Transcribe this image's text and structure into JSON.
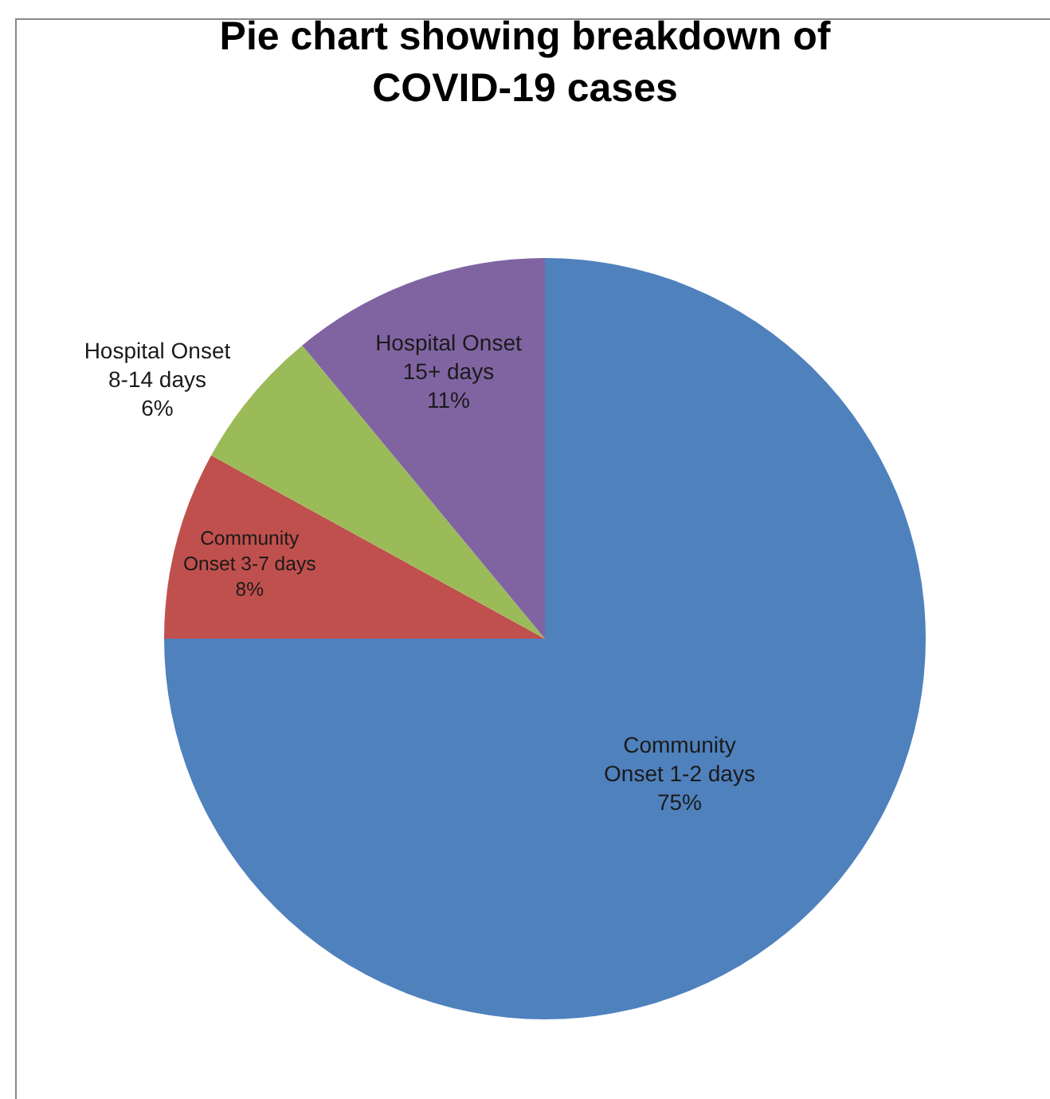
{
  "chart_data": {
    "type": "pie",
    "title": "Pie chart showing breakdown of COVID-19 cases",
    "categories": [
      "Community Onset 1-2 days",
      "Community Onset 3-7 days",
      "Hospital Onset 8-14 days",
      "Hospital Onset 15+ days"
    ],
    "values": [
      75,
      8,
      6,
      11
    ],
    "value_labels": [
      "75%",
      "8%",
      "6%",
      "11%"
    ],
    "colors": [
      "#4f81bd",
      "#c0504d",
      "#9bbb59",
      "#8064a2"
    ]
  }
}
